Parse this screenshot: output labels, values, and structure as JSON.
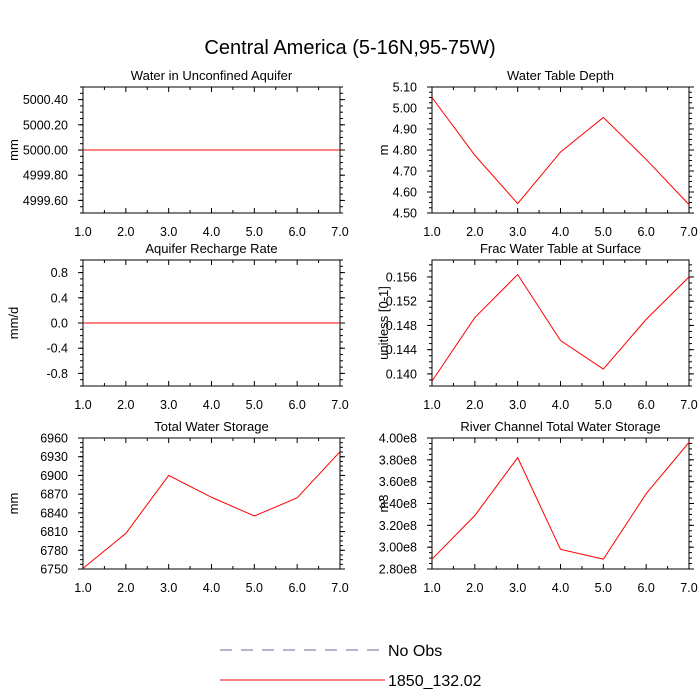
{
  "title": "Central America (5-16N,95-75W)",
  "colors": {
    "model": "#ff0000",
    "obs": "#6a6a9a",
    "frame": "#000000"
  },
  "legend": {
    "obs_label": "No Obs",
    "model_label": "1850_132.02"
  },
  "chart_data": [
    {
      "type": "line",
      "title": "Water in Unconfined Aquifer",
      "ylabel": "mm",
      "xlabel": "",
      "x": [
        1,
        2,
        3,
        4,
        5,
        6,
        7
      ],
      "xlim": [
        1,
        7
      ],
      "xticks": [
        "1.0",
        "2.0",
        "3.0",
        "4.0",
        "5.0",
        "6.0",
        "7.0"
      ],
      "ylim": [
        4999.5,
        5000.5
      ],
      "yticks": [
        {
          "value": 4999.6,
          "label": "4999.60"
        },
        {
          "value": 4999.8,
          "label": "4999.80"
        },
        {
          "value": 5000.0,
          "label": "5000.00"
        },
        {
          "value": 5000.2,
          "label": "5000.20"
        },
        {
          "value": 5000.4,
          "label": "5000.40"
        }
      ],
      "series": [
        {
          "name": "1850_132.02",
          "values": [
            5000,
            5000,
            5000,
            5000,
            5000,
            5000,
            5000
          ]
        }
      ]
    },
    {
      "type": "line",
      "title": "Water Table Depth",
      "ylabel": "m",
      "xlabel": "",
      "x": [
        1,
        2,
        3,
        4,
        5,
        6,
        7
      ],
      "xlim": [
        1,
        7
      ],
      "xticks": [
        "1.0",
        "2.0",
        "3.0",
        "4.0",
        "5.0",
        "6.0",
        "7.0"
      ],
      "ylim": [
        4.5,
        5.1
      ],
      "yticks": [
        {
          "value": 4.5,
          "label": "4.50"
        },
        {
          "value": 4.6,
          "label": "4.60"
        },
        {
          "value": 4.7,
          "label": "4.70"
        },
        {
          "value": 4.8,
          "label": "4.80"
        },
        {
          "value": 4.9,
          "label": "4.90"
        },
        {
          "value": 5.0,
          "label": "5.00"
        },
        {
          "value": 5.1,
          "label": "5.10"
        }
      ],
      "series": [
        {
          "name": "1850_132.02",
          "values": [
            5.05,
            4.775,
            4.545,
            4.79,
            4.955,
            4.755,
            4.54
          ]
        }
      ]
    },
    {
      "type": "line",
      "title": "Aquifer Recharge Rate",
      "ylabel": "mm/d",
      "xlabel": "",
      "x": [
        1,
        2,
        3,
        4,
        5,
        6,
        7
      ],
      "xlim": [
        1,
        7
      ],
      "xticks": [
        "1.0",
        "2.0",
        "3.0",
        "4.0",
        "5.0",
        "6.0",
        "7.0"
      ],
      "ylim": [
        -1.0,
        1.0
      ],
      "yticks": [
        {
          "value": -0.8,
          "label": "-0.8"
        },
        {
          "value": -0.4,
          "label": "-0.4"
        },
        {
          "value": 0.0,
          "label": "0.0"
        },
        {
          "value": 0.4,
          "label": "0.4"
        },
        {
          "value": 0.8,
          "label": "0.8"
        }
      ],
      "series": [
        {
          "name": "1850_132.02",
          "values": [
            0,
            0,
            0,
            0,
            0,
            0,
            0
          ]
        }
      ]
    },
    {
      "type": "line",
      "title": "Frac Water Table at Surface",
      "ylabel": "unitless [0-1]",
      "xlabel": "",
      "x": [
        1,
        2,
        3,
        4,
        5,
        6,
        7
      ],
      "xlim": [
        1,
        7
      ],
      "xticks": [
        "1.0",
        "2.0",
        "3.0",
        "4.0",
        "5.0",
        "6.0",
        "7.0"
      ],
      "ylim": [
        0.138,
        0.1588
      ],
      "yticks": [
        {
          "value": 0.14,
          "label": "0.140"
        },
        {
          "value": 0.144,
          "label": "0.144"
        },
        {
          "value": 0.148,
          "label": "0.148"
        },
        {
          "value": 0.152,
          "label": "0.152"
        },
        {
          "value": 0.156,
          "label": "0.156"
        }
      ],
      "series": [
        {
          "name": "1850_132.02",
          "values": [
            0.1388,
            0.1493,
            0.1564,
            0.1455,
            0.1408,
            0.149,
            0.156
          ]
        }
      ]
    },
    {
      "type": "line",
      "title": "Total Water Storage",
      "ylabel": "mm",
      "xlabel": "",
      "x": [
        1,
        2,
        3,
        4,
        5,
        6,
        7
      ],
      "xlim": [
        1,
        7
      ],
      "xticks": [
        "1.0",
        "2.0",
        "3.0",
        "4.0",
        "5.0",
        "6.0",
        "7.0"
      ],
      "ylim": [
        6750,
        6960
      ],
      "yticks": [
        {
          "value": 6750,
          "label": "6750"
        },
        {
          "value": 6780,
          "label": "6780"
        },
        {
          "value": 6810,
          "label": "6810"
        },
        {
          "value": 6840,
          "label": "6840"
        },
        {
          "value": 6870,
          "label": "6870"
        },
        {
          "value": 6900,
          "label": "6900"
        },
        {
          "value": 6930,
          "label": "6930"
        },
        {
          "value": 6960,
          "label": "6960"
        }
      ],
      "series": [
        {
          "name": "1850_132.02",
          "values": [
            6751,
            6807,
            6900,
            6865,
            6835,
            6864,
            6938
          ]
        }
      ]
    },
    {
      "type": "line",
      "title": "River Channel Total Water Storage",
      "ylabel": "m3",
      "xlabel": "",
      "x": [
        1,
        2,
        3,
        4,
        5,
        6,
        7
      ],
      "xlim": [
        1,
        7
      ],
      "xticks": [
        "1.0",
        "2.0",
        "3.0",
        "4.0",
        "5.0",
        "6.0",
        "7.0"
      ],
      "ylim": [
        280000000,
        400000000
      ],
      "yticks": [
        {
          "value": 280000000,
          "label": "2.80e8"
        },
        {
          "value": 300000000,
          "label": "3.00e8"
        },
        {
          "value": 320000000,
          "label": "3.20e8"
        },
        {
          "value": 340000000,
          "label": "3.40e8"
        },
        {
          "value": 360000000,
          "label": "3.60e8"
        },
        {
          "value": 380000000,
          "label": "3.80e8"
        },
        {
          "value": 400000000,
          "label": "4.00e8"
        }
      ],
      "series": [
        {
          "name": "1850_132.02",
          "values": [
            289000000,
            329000000,
            382000000,
            298000000,
            289000000,
            349000000,
            396000000
          ]
        }
      ]
    }
  ]
}
